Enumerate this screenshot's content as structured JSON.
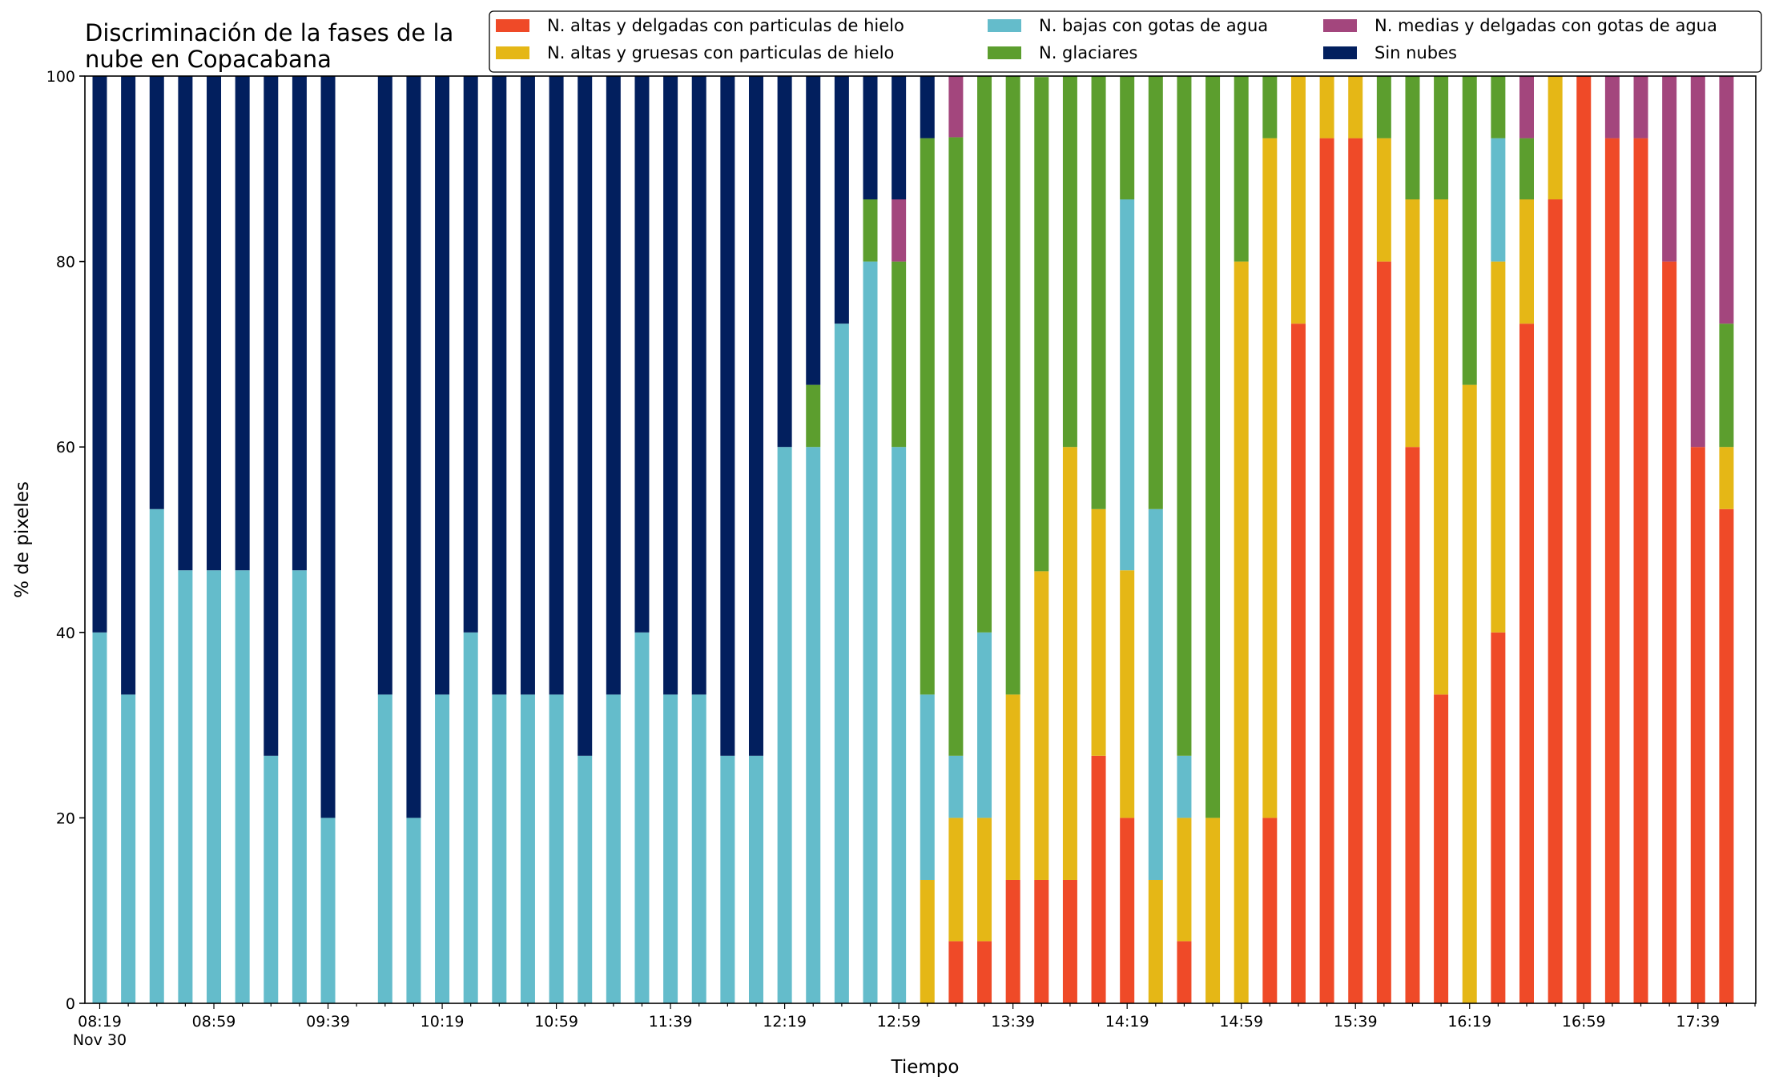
{
  "chart_data": {
    "type": "bar",
    "stacked": true,
    "title": [
      "Discriminación de la fases de la",
      "nube en Copacabana"
    ],
    "xlabel": "Tiempo",
    "ylabel": "% de pixeles",
    "ylim": [
      0,
      100
    ],
    "yticks": [
      "0",
      "20",
      "40",
      "60",
      "80",
      "100"
    ],
    "xtick_labels": [
      "08:19",
      "08:59",
      "09:39",
      "10:19",
      "10:59",
      "11:39",
      "12:19",
      "12:59",
      "13:39",
      "14:19",
      "14:59",
      "15:39",
      "16:19",
      "16:59",
      "17:39"
    ],
    "xtick_sublabel": "Nov 30",
    "legend_position": "top-right",
    "grid": false,
    "categories": [
      "08:19",
      "08:29",
      "08:39",
      "08:49",
      "08:59",
      "09:09",
      "09:19",
      "09:29",
      "09:39",
      "09:49",
      "09:59",
      "10:09",
      "10:19",
      "10:29",
      "10:39",
      "10:49",
      "10:59",
      "11:09",
      "11:19",
      "11:29",
      "11:39",
      "11:49",
      "11:59",
      "12:09",
      "12:19",
      "12:29",
      "12:39",
      "12:49",
      "12:59",
      "13:09",
      "13:19",
      "13:29",
      "13:39",
      "13:49",
      "13:59",
      "14:09",
      "14:19",
      "14:29",
      "14:39",
      "14:49",
      "14:59",
      "15:09",
      "15:19",
      "15:29",
      "15:39",
      "15:49",
      "15:59",
      "16:09",
      "16:19",
      "16:29",
      "16:39",
      "16:49",
      "16:59",
      "17:09",
      "17:19",
      "17:29",
      "17:39",
      "17:49"
    ],
    "series": [
      {
        "name": "N. altas y delgadas con particulas de hielo",
        "color": "#ef4a28",
        "values": [
          0,
          0,
          0,
          0,
          0,
          0,
          0,
          0,
          0,
          null,
          0,
          0,
          0,
          0,
          0,
          0,
          0,
          0,
          0,
          0,
          0,
          0,
          0,
          0,
          0,
          0,
          0,
          0,
          0,
          0,
          6.7,
          6.7,
          13.3,
          13.3,
          13.3,
          26.7,
          20,
          0,
          6.7,
          0,
          0,
          20,
          73.3,
          93.3,
          93.3,
          80,
          60,
          33.3,
          0,
          40,
          73.3,
          86.7,
          100,
          93.3,
          93.3,
          80,
          60,
          53.3
        ]
      },
      {
        "name": "N. altas y gruesas con particulas de hielo",
        "color": "#e5b716",
        "values": [
          0,
          0,
          0,
          0,
          0,
          0,
          0,
          0,
          0,
          null,
          0,
          0,
          0,
          0,
          0,
          0,
          0,
          0,
          0,
          0,
          0,
          0,
          0,
          0,
          0,
          0,
          0,
          0,
          0,
          13.3,
          13.3,
          13.3,
          20,
          33.3,
          46.7,
          26.6,
          26.7,
          13.3,
          13.3,
          20,
          80,
          73.3,
          26.7,
          6.7,
          6.7,
          13.3,
          26.7,
          53.4,
          66.7,
          40,
          13.4,
          13.3,
          0,
          0,
          0,
          0,
          0,
          6.7
        ]
      },
      {
        "name": "N. bajas con gotas de agua",
        "color": "#64bccb",
        "values": [
          40,
          33.3,
          53.3,
          46.7,
          46.7,
          46.7,
          26.7,
          46.7,
          20,
          null,
          33.3,
          20,
          33.3,
          40,
          33.3,
          33.3,
          33.3,
          26.7,
          33.3,
          40,
          33.3,
          33.3,
          26.7,
          26.7,
          60,
          60,
          73.3,
          80,
          60,
          20,
          6.7,
          20,
          0,
          0,
          0,
          0,
          40,
          40,
          6.7,
          0,
          0,
          0,
          0,
          0,
          0,
          0,
          0,
          0,
          0,
          13.3,
          0,
          0,
          0,
          0,
          0,
          0,
          0,
          0
        ]
      },
      {
        "name": "N. glaciares",
        "color": "#5c9e2e",
        "values": [
          0,
          0,
          0,
          0,
          0,
          0,
          0,
          0,
          0,
          null,
          0,
          0,
          0,
          0,
          0,
          0,
          0,
          0,
          0,
          0,
          0,
          0,
          0,
          0,
          0,
          6.7,
          0,
          6.7,
          20,
          60,
          66.7,
          60,
          66.7,
          53.3,
          40,
          46.7,
          13.3,
          46.7,
          73.3,
          80,
          20,
          6.7,
          0,
          0,
          0,
          6.7,
          13.3,
          13.3,
          33.3,
          6.7,
          6.6,
          0,
          0,
          0,
          0,
          0,
          0,
          13.3
        ]
      },
      {
        "name": "N. medias y delgadas con gotas de agua",
        "color": "#a3467d",
        "values": [
          0,
          0,
          0,
          0,
          0,
          0,
          0,
          0,
          0,
          null,
          0,
          0,
          0,
          0,
          0,
          0,
          0,
          0,
          0,
          0,
          0,
          0,
          0,
          0,
          0,
          0,
          0,
          0,
          6.7,
          0,
          6.7,
          0,
          0,
          0,
          0,
          0,
          0,
          0,
          0,
          0,
          0,
          0,
          0,
          0,
          0,
          0,
          0,
          0,
          0,
          0,
          6.7,
          0,
          0,
          6.7,
          6.7,
          20,
          40,
          26.7
        ]
      },
      {
        "name": "Sin nubes",
        "color": "#021f5e",
        "values": [
          60,
          66.7,
          46.7,
          53.3,
          53.3,
          53.3,
          73.3,
          53.3,
          80,
          null,
          66.7,
          80,
          66.7,
          60,
          66.7,
          66.7,
          66.7,
          73.3,
          66.7,
          60,
          66.7,
          66.7,
          73.3,
          73.3,
          40,
          33.3,
          26.7,
          13.3,
          13.3,
          6.7,
          0,
          0,
          0,
          0,
          0,
          0,
          0,
          0,
          0,
          0,
          0,
          0,
          0,
          0,
          0,
          0,
          0,
          0,
          0,
          0,
          0,
          0,
          0,
          0,
          0,
          0,
          0,
          0
        ]
      }
    ],
    "legend_order": [
      0,
      1,
      2,
      3,
      4,
      5
    ]
  }
}
